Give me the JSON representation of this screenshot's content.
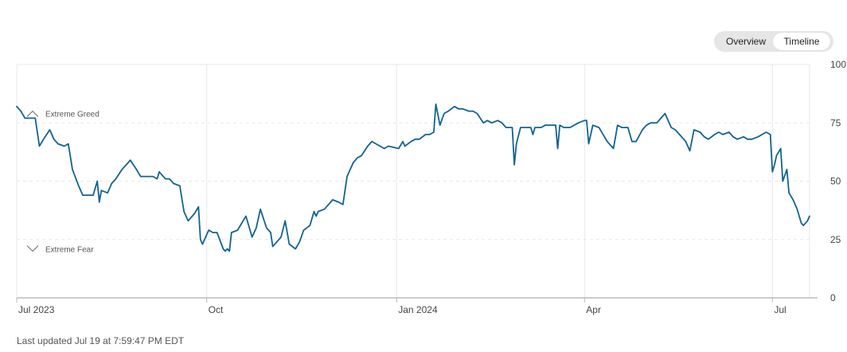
{
  "toggle": {
    "overview_label": "Overview",
    "timeline_label": "Timeline"
  },
  "footer": {
    "last_updated": "Last updated Jul 19 at 7:59:47 PM EDT"
  },
  "colors": {
    "line": "#11638f",
    "grid": "#e8e8e8",
    "axis": "#bbbbbb",
    "text": "#444444"
  },
  "chart_data": {
    "type": "line",
    "ylim": [
      0,
      100
    ],
    "yticks": [
      0,
      25,
      50,
      75,
      100
    ],
    "xlim": [
      "2023-07-01",
      "2024-07-19"
    ],
    "xticks": [
      {
        "date": "2023-07-01",
        "label": "Jul 2023"
      },
      {
        "date": "2023-10-01",
        "label": "Oct"
      },
      {
        "date": "2024-01-01",
        "label": "Jan 2024"
      },
      {
        "date": "2024-04-01",
        "label": "Apr"
      },
      {
        "date": "2024-07-01",
        "label": "Jul"
      }
    ],
    "grid": "dashed horizontal, solid vertical",
    "annotations": [
      {
        "label": "Extreme Greed",
        "y": 79,
        "direction": "up"
      },
      {
        "label": "Extreme Fear",
        "y": 21,
        "direction": "down"
      }
    ],
    "series": [
      {
        "values": [
          [
            "2023-07-01",
            82
          ],
          [
            "2023-07-03",
            80
          ],
          [
            "2023-07-05",
            77
          ],
          [
            "2023-07-07",
            77
          ],
          [
            "2023-07-10",
            77
          ],
          [
            "2023-07-12",
            65
          ],
          [
            "2023-07-14",
            68
          ],
          [
            "2023-07-17",
            72
          ],
          [
            "2023-07-19",
            68
          ],
          [
            "2023-07-21",
            66
          ],
          [
            "2023-07-24",
            65
          ],
          [
            "2023-07-26",
            66
          ],
          [
            "2023-07-28",
            55
          ],
          [
            "2023-07-31",
            48
          ],
          [
            "2023-08-02",
            44
          ],
          [
            "2023-08-04",
            44
          ],
          [
            "2023-08-07",
            44
          ],
          [
            "2023-08-09",
            50
          ],
          [
            "2023-08-10",
            41
          ],
          [
            "2023-08-11",
            46
          ],
          [
            "2023-08-14",
            45
          ],
          [
            "2023-08-16",
            49
          ],
          [
            "2023-08-18",
            51
          ],
          [
            "2023-08-21",
            55
          ],
          [
            "2023-08-23",
            57
          ],
          [
            "2023-08-25",
            59
          ],
          [
            "2023-08-28",
            55
          ],
          [
            "2023-08-30",
            52
          ],
          [
            "2023-09-01",
            52
          ],
          [
            "2023-09-05",
            52
          ],
          [
            "2023-09-07",
            51
          ],
          [
            "2023-09-08",
            54
          ],
          [
            "2023-09-11",
            51
          ],
          [
            "2023-09-13",
            51
          ],
          [
            "2023-09-15",
            49
          ],
          [
            "2023-09-18",
            48
          ],
          [
            "2023-09-20",
            37
          ],
          [
            "2023-09-22",
            33
          ],
          [
            "2023-09-25",
            36
          ],
          [
            "2023-09-27",
            39
          ],
          [
            "2023-09-28",
            25
          ],
          [
            "2023-09-29",
            23
          ],
          [
            "2023-10-02",
            29
          ],
          [
            "2023-10-04",
            28
          ],
          [
            "2023-10-06",
            28
          ],
          [
            "2023-10-09",
            21
          ],
          [
            "2023-10-10",
            20
          ],
          [
            "2023-10-11",
            21
          ],
          [
            "2023-10-12",
            20
          ],
          [
            "2023-10-13",
            28
          ],
          [
            "2023-10-16",
            29
          ],
          [
            "2023-10-18",
            32
          ],
          [
            "2023-10-20",
            35
          ],
          [
            "2023-10-23",
            26
          ],
          [
            "2023-10-25",
            30
          ],
          [
            "2023-10-27",
            38
          ],
          [
            "2023-10-30",
            30
          ],
          [
            "2023-11-01",
            28
          ],
          [
            "2023-11-02",
            22
          ],
          [
            "2023-11-03",
            23
          ],
          [
            "2023-11-06",
            26
          ],
          [
            "2023-11-08",
            33
          ],
          [
            "2023-11-10",
            23
          ],
          [
            "2023-11-13",
            21
          ],
          [
            "2023-11-15",
            24
          ],
          [
            "2023-11-17",
            29
          ],
          [
            "2023-11-20",
            31
          ],
          [
            "2023-11-22",
            37
          ],
          [
            "2023-11-23",
            35
          ],
          [
            "2023-11-24",
            37
          ],
          [
            "2023-11-27",
            38
          ],
          [
            "2023-11-29",
            40
          ],
          [
            "2023-12-01",
            42
          ],
          [
            "2023-12-04",
            41
          ],
          [
            "2023-12-06",
            40
          ],
          [
            "2023-12-08",
            52
          ],
          [
            "2023-12-11",
            58
          ],
          [
            "2023-12-13",
            60
          ],
          [
            "2023-12-15",
            61
          ],
          [
            "2023-12-18",
            65
          ],
          [
            "2023-12-20",
            67
          ],
          [
            "2023-12-22",
            66
          ],
          [
            "2023-12-26",
            64
          ],
          [
            "2023-12-28",
            65
          ],
          [
            "2024-01-02",
            64
          ],
          [
            "2024-01-04",
            67
          ],
          [
            "2024-01-05",
            65
          ],
          [
            "2024-01-08",
            67
          ],
          [
            "2024-01-10",
            68
          ],
          [
            "2024-01-12",
            68
          ],
          [
            "2024-01-15",
            70
          ],
          [
            "2024-01-17",
            70
          ],
          [
            "2024-01-19",
            71
          ],
          [
            "2024-01-20",
            83
          ],
          [
            "2024-01-22",
            74
          ],
          [
            "2024-01-24",
            79
          ],
          [
            "2024-01-26",
            80
          ],
          [
            "2024-01-29",
            82
          ],
          [
            "2024-01-31",
            81
          ],
          [
            "2024-02-02",
            81
          ],
          [
            "2024-02-05",
            80
          ],
          [
            "2024-02-07",
            80
          ],
          [
            "2024-02-09",
            79
          ],
          [
            "2024-02-12",
            75
          ],
          [
            "2024-02-14",
            76
          ],
          [
            "2024-02-16",
            75
          ],
          [
            "2024-02-19",
            76
          ],
          [
            "2024-02-21",
            75
          ],
          [
            "2024-02-23",
            73
          ],
          [
            "2024-02-26",
            73
          ],
          [
            "2024-02-27",
            57
          ],
          [
            "2024-02-28",
            66
          ],
          [
            "2024-03-01",
            73
          ],
          [
            "2024-03-04",
            73
          ],
          [
            "2024-03-06",
            73
          ],
          [
            "2024-03-07",
            70
          ],
          [
            "2024-03-08",
            73
          ],
          [
            "2024-03-11",
            73
          ],
          [
            "2024-03-13",
            74
          ],
          [
            "2024-03-15",
            74
          ],
          [
            "2024-03-18",
            74
          ],
          [
            "2024-03-19",
            64
          ],
          [
            "2024-03-20",
            74
          ],
          [
            "2024-03-22",
            73
          ],
          [
            "2024-03-25",
            73
          ],
          [
            "2024-03-27",
            74
          ],
          [
            "2024-03-29",
            75
          ],
          [
            "2024-04-01",
            76
          ],
          [
            "2024-04-02",
            76
          ],
          [
            "2024-04-03",
            66
          ],
          [
            "2024-04-05",
            74
          ],
          [
            "2024-04-08",
            73
          ],
          [
            "2024-04-10",
            70
          ],
          [
            "2024-04-12",
            67
          ],
          [
            "2024-04-15",
            64
          ],
          [
            "2024-04-17",
            74
          ],
          [
            "2024-04-19",
            73
          ],
          [
            "2024-04-22",
            73
          ],
          [
            "2024-04-24",
            67
          ],
          [
            "2024-04-26",
            67
          ],
          [
            "2024-04-29",
            72
          ],
          [
            "2024-05-01",
            74
          ],
          [
            "2024-05-03",
            75
          ],
          [
            "2024-05-06",
            75
          ],
          [
            "2024-05-08",
            77
          ],
          [
            "2024-05-10",
            79
          ],
          [
            "2024-05-13",
            73
          ],
          [
            "2024-05-15",
            72
          ],
          [
            "2024-05-17",
            70
          ],
          [
            "2024-05-20",
            67
          ],
          [
            "2024-05-22",
            63
          ],
          [
            "2024-05-24",
            72
          ],
          [
            "2024-05-27",
            71
          ],
          [
            "2024-05-29",
            69
          ],
          [
            "2024-05-31",
            68
          ],
          [
            "2024-06-03",
            70
          ],
          [
            "2024-06-05",
            71
          ],
          [
            "2024-06-07",
            70
          ],
          [
            "2024-06-10",
            71
          ],
          [
            "2024-06-12",
            69
          ],
          [
            "2024-06-14",
            68
          ],
          [
            "2024-06-17",
            69
          ],
          [
            "2024-06-19",
            68
          ],
          [
            "2024-06-21",
            68
          ],
          [
            "2024-06-24",
            69
          ],
          [
            "2024-06-26",
            70
          ],
          [
            "2024-06-28",
            71
          ],
          [
            "2024-06-30",
            70
          ],
          [
            "2024-07-01",
            54
          ],
          [
            "2024-07-02",
            57
          ],
          [
            "2024-07-03",
            61
          ],
          [
            "2024-07-05",
            64
          ],
          [
            "2024-07-06",
            50
          ],
          [
            "2024-07-08",
            55
          ],
          [
            "2024-07-09",
            45
          ],
          [
            "2024-07-11",
            42
          ],
          [
            "2024-07-13",
            38
          ],
          [
            "2024-07-15",
            32
          ],
          [
            "2024-07-16",
            31
          ],
          [
            "2024-07-18",
            33
          ],
          [
            "2024-07-19",
            35
          ]
        ]
      }
    ]
  }
}
